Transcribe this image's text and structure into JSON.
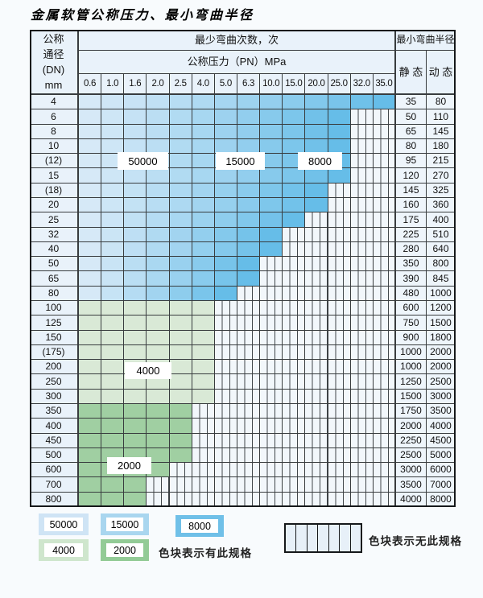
{
  "title": "金属软管公称压力、最小弯曲半径",
  "table": {
    "dn_header_lines": [
      "公称",
      "通径",
      "(DN)",
      "mm"
    ],
    "cycles_header": "最少弯曲次数，次",
    "pressure_header": "公称压力（PN）MPa",
    "radius_header": "最小弯曲半径",
    "static_label": "静 态",
    "dynamic_label": "动 态",
    "pressures": [
      "0.6",
      "1.0",
      "1.6",
      "2.0",
      "2.5",
      "4.0",
      "5.0",
      "6.3",
      "10.0",
      "15.0",
      "20.0",
      "25.0",
      "32.0",
      "35.0"
    ],
    "rows": [
      {
        "dn": "4",
        "colored": 14,
        "zone": "blue",
        "static": "35",
        "dynamic": "80"
      },
      {
        "dn": "6",
        "colored": 12,
        "zone": "blue",
        "static": "50",
        "dynamic": "110"
      },
      {
        "dn": "8",
        "colored": 12,
        "zone": "blue",
        "static": "65",
        "dynamic": "145"
      },
      {
        "dn": "10",
        "colored": 12,
        "zone": "blue",
        "static": "80",
        "dynamic": "180"
      },
      {
        "dn": "(12)",
        "colored": 12,
        "zone": "blue",
        "static": "95",
        "dynamic": "215"
      },
      {
        "dn": "15",
        "colored": 12,
        "zone": "blue",
        "static": "120",
        "dynamic": "270"
      },
      {
        "dn": "(18)",
        "colored": 11,
        "zone": "blue",
        "static": "145",
        "dynamic": "325"
      },
      {
        "dn": "20",
        "colored": 11,
        "zone": "blue",
        "static": "160",
        "dynamic": "360"
      },
      {
        "dn": "25",
        "colored": 10,
        "zone": "blue",
        "static": "175",
        "dynamic": "400"
      },
      {
        "dn": "32",
        "colored": 9,
        "zone": "blue",
        "static": "225",
        "dynamic": "510"
      },
      {
        "dn": "40",
        "colored": 9,
        "zone": "blue",
        "static": "280",
        "dynamic": "640"
      },
      {
        "dn": "50",
        "colored": 8,
        "zone": "blue",
        "static": "350",
        "dynamic": "800"
      },
      {
        "dn": "65",
        "colored": 8,
        "zone": "blue",
        "static": "390",
        "dynamic": "845"
      },
      {
        "dn": "80",
        "colored": 7,
        "zone": "blue",
        "static": "480",
        "dynamic": "1000"
      },
      {
        "dn": "100",
        "colored": 6,
        "zone": "green_light",
        "static": "600",
        "dynamic": "1200"
      },
      {
        "dn": "125",
        "colored": 6,
        "zone": "green_light",
        "static": "750",
        "dynamic": "1500"
      },
      {
        "dn": "150",
        "colored": 6,
        "zone": "green_light",
        "static": "900",
        "dynamic": "1800"
      },
      {
        "dn": "(175)",
        "colored": 6,
        "zone": "green_light",
        "static": "1000",
        "dynamic": "2000"
      },
      {
        "dn": "200",
        "colored": 6,
        "zone": "green_light",
        "static": "1000",
        "dynamic": "2000"
      },
      {
        "dn": "250",
        "colored": 6,
        "zone": "green_light",
        "static": "1250",
        "dynamic": "2500"
      },
      {
        "dn": "300",
        "colored": 6,
        "zone": "green_light",
        "static": "1500",
        "dynamic": "3000"
      },
      {
        "dn": "350",
        "colored": 5,
        "zone": "green_dark",
        "static": "1750",
        "dynamic": "3500"
      },
      {
        "dn": "400",
        "colored": 5,
        "zone": "green_dark",
        "static": "2000",
        "dynamic": "4000"
      },
      {
        "dn": "450",
        "colored": 5,
        "zone": "green_dark",
        "static": "2250",
        "dynamic": "4500"
      },
      {
        "dn": "500",
        "colored": 5,
        "zone": "green_dark",
        "static": "2500",
        "dynamic": "5000"
      },
      {
        "dn": "600",
        "colored": 4,
        "zone": "green_dark",
        "static": "3000",
        "dynamic": "6000"
      },
      {
        "dn": "700",
        "colored": 3,
        "zone": "green_dark",
        "static": "3500",
        "dynamic": "7000"
      },
      {
        "dn": "800",
        "colored": 3,
        "zone": "green_dark",
        "static": "4000",
        "dynamic": "8000"
      }
    ]
  },
  "zone_colors": {
    "blue_light": "#d6e9f7",
    "blue_dark": "#66bde8",
    "green_light": "#d9e9d6",
    "green_dark": "#a0cfa2"
  },
  "overlays": [
    {
      "id": "b50000",
      "text": "50000"
    },
    {
      "id": "b15000",
      "text": "15000"
    },
    {
      "id": "b8000",
      "text": "8000"
    },
    {
      "id": "g4000",
      "text": "4000"
    },
    {
      "id": "g2000",
      "text": "2000"
    }
  ],
  "legend": {
    "items": [
      {
        "id": "l50000",
        "value": "50000",
        "color": "#cfe4f5"
      },
      {
        "id": "l15000",
        "value": "15000",
        "color": "#a9d6ef"
      },
      {
        "id": "l8000",
        "value": "8000",
        "color": "#70c0e8"
      },
      {
        "id": "l4000",
        "value": "4000",
        "color": "#cfe6cd"
      },
      {
        "id": "l2000",
        "value": "2000",
        "color": "#93cb96"
      }
    ],
    "has_spec_text": "色块表示有此规格",
    "no_spec_text": "色块表示无此规格",
    "no_spec_stripes": 7
  }
}
